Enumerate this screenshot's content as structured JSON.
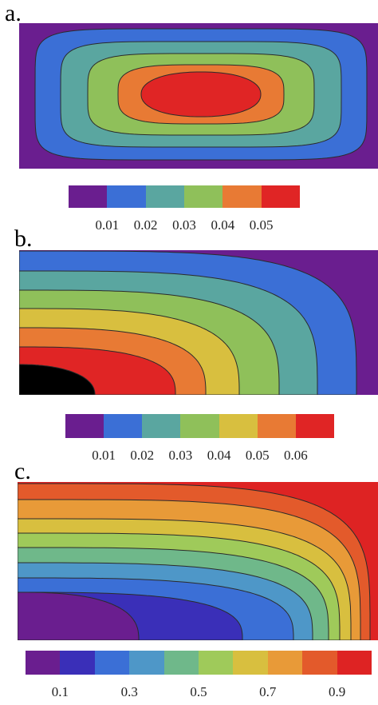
{
  "chart_data": [
    {
      "type": "heatmap",
      "panel_label": "a.",
      "levels": [
        0,
        0.01,
        0.02,
        0.03,
        0.04,
        0.05
      ],
      "colorbar": {
        "colors": [
          "#6a1e8f",
          "#3b6fd6",
          "#5aa6a0",
          "#8fc05a",
          "#e87a34",
          "#e02525"
        ],
        "tick_labels": [
          "0.01",
          "0.02",
          "0.03",
          "0.04",
          "0.05"
        ]
      }
    },
    {
      "type": "heatmap",
      "panel_label": "b.",
      "levels": [
        0,
        0.01,
        0.02,
        0.03,
        0.04,
        0.05,
        0.06
      ],
      "colorbar": {
        "colors": [
          "#6a1e8f",
          "#3b6fd6",
          "#5aa6a0",
          "#8fc05a",
          "#d8bf3f",
          "#e87a34",
          "#e02525"
        ],
        "tick_labels": [
          "0.01",
          "0.02",
          "0.03",
          "0.04",
          "0.05",
          "0.06"
        ]
      }
    },
    {
      "type": "heatmap",
      "panel_label": "c.",
      "levels": [
        0,
        0.1,
        0.2,
        0.3,
        0.4,
        0.5,
        0.6,
        0.7,
        0.8,
        0.9
      ],
      "colorbar": {
        "colors": [
          "#6a1e8f",
          "#3a2fb8",
          "#3b6fd6",
          "#4e97c8",
          "#6fb88a",
          "#9fca5a",
          "#d8bf3f",
          "#e89a38",
          "#e35a2b",
          "#de2323"
        ],
        "tick_labels": [
          "0.1",
          "0.3",
          "0.5",
          "0.7",
          "0.9"
        ]
      }
    }
  ]
}
